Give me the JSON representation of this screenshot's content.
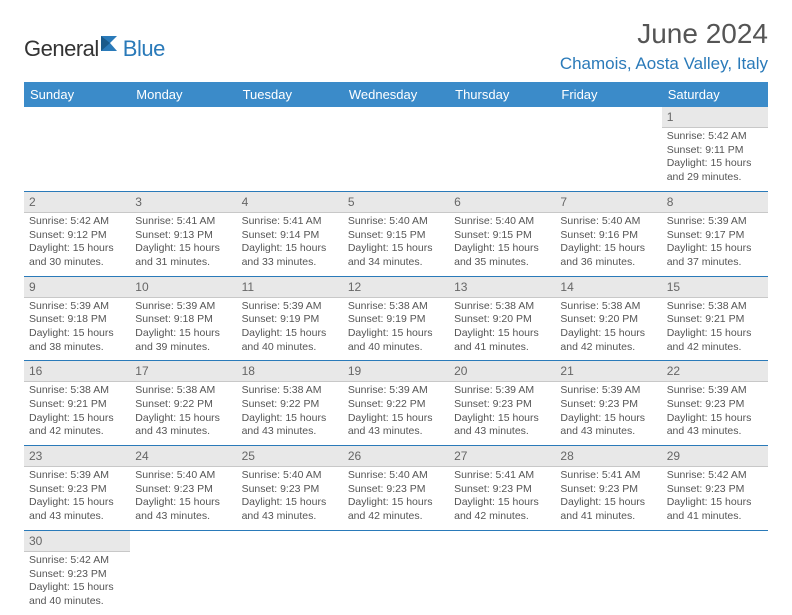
{
  "logo": {
    "part1": "General",
    "part2": "Blue"
  },
  "title": "June 2024",
  "location": "Chamois, Aosta Valley, Italy",
  "columns": [
    "Sunday",
    "Monday",
    "Tuesday",
    "Wednesday",
    "Thursday",
    "Friday",
    "Saturday"
  ],
  "colors": {
    "header_bg": "#3b8bc9",
    "header_text": "#ffffff",
    "accent": "#2a7ab9",
    "daynum_bg": "#e8e8e8",
    "text": "#555555"
  },
  "weeks": [
    [
      null,
      null,
      null,
      null,
      null,
      null,
      {
        "n": "1",
        "sr": "Sunrise: 5:42 AM",
        "ss": "Sunset: 9:11 PM",
        "d1": "Daylight: 15 hours",
        "d2": "and 29 minutes."
      }
    ],
    [
      {
        "n": "2",
        "sr": "Sunrise: 5:42 AM",
        "ss": "Sunset: 9:12 PM",
        "d1": "Daylight: 15 hours",
        "d2": "and 30 minutes."
      },
      {
        "n": "3",
        "sr": "Sunrise: 5:41 AM",
        "ss": "Sunset: 9:13 PM",
        "d1": "Daylight: 15 hours",
        "d2": "and 31 minutes."
      },
      {
        "n": "4",
        "sr": "Sunrise: 5:41 AM",
        "ss": "Sunset: 9:14 PM",
        "d1": "Daylight: 15 hours",
        "d2": "and 33 minutes."
      },
      {
        "n": "5",
        "sr": "Sunrise: 5:40 AM",
        "ss": "Sunset: 9:15 PM",
        "d1": "Daylight: 15 hours",
        "d2": "and 34 minutes."
      },
      {
        "n": "6",
        "sr": "Sunrise: 5:40 AM",
        "ss": "Sunset: 9:15 PM",
        "d1": "Daylight: 15 hours",
        "d2": "and 35 minutes."
      },
      {
        "n": "7",
        "sr": "Sunrise: 5:40 AM",
        "ss": "Sunset: 9:16 PM",
        "d1": "Daylight: 15 hours",
        "d2": "and 36 minutes."
      },
      {
        "n": "8",
        "sr": "Sunrise: 5:39 AM",
        "ss": "Sunset: 9:17 PM",
        "d1": "Daylight: 15 hours",
        "d2": "and 37 minutes."
      }
    ],
    [
      {
        "n": "9",
        "sr": "Sunrise: 5:39 AM",
        "ss": "Sunset: 9:18 PM",
        "d1": "Daylight: 15 hours",
        "d2": "and 38 minutes."
      },
      {
        "n": "10",
        "sr": "Sunrise: 5:39 AM",
        "ss": "Sunset: 9:18 PM",
        "d1": "Daylight: 15 hours",
        "d2": "and 39 minutes."
      },
      {
        "n": "11",
        "sr": "Sunrise: 5:39 AM",
        "ss": "Sunset: 9:19 PM",
        "d1": "Daylight: 15 hours",
        "d2": "and 40 minutes."
      },
      {
        "n": "12",
        "sr": "Sunrise: 5:38 AM",
        "ss": "Sunset: 9:19 PM",
        "d1": "Daylight: 15 hours",
        "d2": "and 40 minutes."
      },
      {
        "n": "13",
        "sr": "Sunrise: 5:38 AM",
        "ss": "Sunset: 9:20 PM",
        "d1": "Daylight: 15 hours",
        "d2": "and 41 minutes."
      },
      {
        "n": "14",
        "sr": "Sunrise: 5:38 AM",
        "ss": "Sunset: 9:20 PM",
        "d1": "Daylight: 15 hours",
        "d2": "and 42 minutes."
      },
      {
        "n": "15",
        "sr": "Sunrise: 5:38 AM",
        "ss": "Sunset: 9:21 PM",
        "d1": "Daylight: 15 hours",
        "d2": "and 42 minutes."
      }
    ],
    [
      {
        "n": "16",
        "sr": "Sunrise: 5:38 AM",
        "ss": "Sunset: 9:21 PM",
        "d1": "Daylight: 15 hours",
        "d2": "and 42 minutes."
      },
      {
        "n": "17",
        "sr": "Sunrise: 5:38 AM",
        "ss": "Sunset: 9:22 PM",
        "d1": "Daylight: 15 hours",
        "d2": "and 43 minutes."
      },
      {
        "n": "18",
        "sr": "Sunrise: 5:38 AM",
        "ss": "Sunset: 9:22 PM",
        "d1": "Daylight: 15 hours",
        "d2": "and 43 minutes."
      },
      {
        "n": "19",
        "sr": "Sunrise: 5:39 AM",
        "ss": "Sunset: 9:22 PM",
        "d1": "Daylight: 15 hours",
        "d2": "and 43 minutes."
      },
      {
        "n": "20",
        "sr": "Sunrise: 5:39 AM",
        "ss": "Sunset: 9:23 PM",
        "d1": "Daylight: 15 hours",
        "d2": "and 43 minutes."
      },
      {
        "n": "21",
        "sr": "Sunrise: 5:39 AM",
        "ss": "Sunset: 9:23 PM",
        "d1": "Daylight: 15 hours",
        "d2": "and 43 minutes."
      },
      {
        "n": "22",
        "sr": "Sunrise: 5:39 AM",
        "ss": "Sunset: 9:23 PM",
        "d1": "Daylight: 15 hours",
        "d2": "and 43 minutes."
      }
    ],
    [
      {
        "n": "23",
        "sr": "Sunrise: 5:39 AM",
        "ss": "Sunset: 9:23 PM",
        "d1": "Daylight: 15 hours",
        "d2": "and 43 minutes."
      },
      {
        "n": "24",
        "sr": "Sunrise: 5:40 AM",
        "ss": "Sunset: 9:23 PM",
        "d1": "Daylight: 15 hours",
        "d2": "and 43 minutes."
      },
      {
        "n": "25",
        "sr": "Sunrise: 5:40 AM",
        "ss": "Sunset: 9:23 PM",
        "d1": "Daylight: 15 hours",
        "d2": "and 43 minutes."
      },
      {
        "n": "26",
        "sr": "Sunrise: 5:40 AM",
        "ss": "Sunset: 9:23 PM",
        "d1": "Daylight: 15 hours",
        "d2": "and 42 minutes."
      },
      {
        "n": "27",
        "sr": "Sunrise: 5:41 AM",
        "ss": "Sunset: 9:23 PM",
        "d1": "Daylight: 15 hours",
        "d2": "and 42 minutes."
      },
      {
        "n": "28",
        "sr": "Sunrise: 5:41 AM",
        "ss": "Sunset: 9:23 PM",
        "d1": "Daylight: 15 hours",
        "d2": "and 41 minutes."
      },
      {
        "n": "29",
        "sr": "Sunrise: 5:42 AM",
        "ss": "Sunset: 9:23 PM",
        "d1": "Daylight: 15 hours",
        "d2": "and 41 minutes."
      }
    ],
    [
      {
        "n": "30",
        "sr": "Sunrise: 5:42 AM",
        "ss": "Sunset: 9:23 PM",
        "d1": "Daylight: 15 hours",
        "d2": "and 40 minutes."
      },
      null,
      null,
      null,
      null,
      null,
      null
    ]
  ]
}
